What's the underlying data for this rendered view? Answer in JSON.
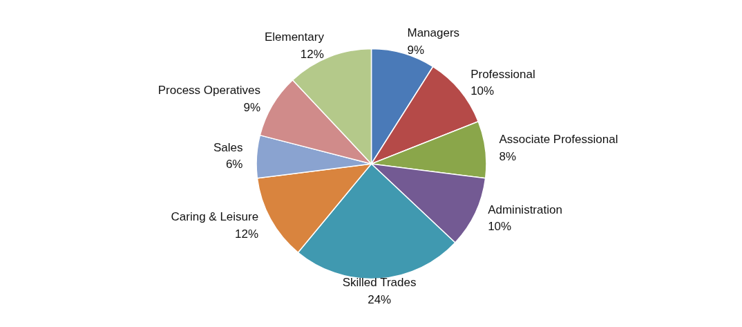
{
  "chart_data": {
    "type": "pie",
    "categories": [
      "Managers",
      "Professional",
      "Associate Professional",
      "Administration",
      "Skilled Trades",
      "Caring & Leisure",
      "Sales",
      "Process Operatives",
      "Elementary"
    ],
    "values": [
      9,
      10,
      8,
      10,
      24,
      12,
      6,
      9,
      12
    ],
    "value_labels": [
      "9%",
      "10%",
      "8%",
      "10%",
      "24%",
      "12%",
      "6%",
      "9%",
      "12%"
    ],
    "colors": [
      "#4a7ab8",
      "#b54a48",
      "#8aa64a",
      "#735a93",
      "#4099b0",
      "#d9843e",
      "#8aa3d0",
      "#d08b8a",
      "#b4c98a"
    ]
  }
}
